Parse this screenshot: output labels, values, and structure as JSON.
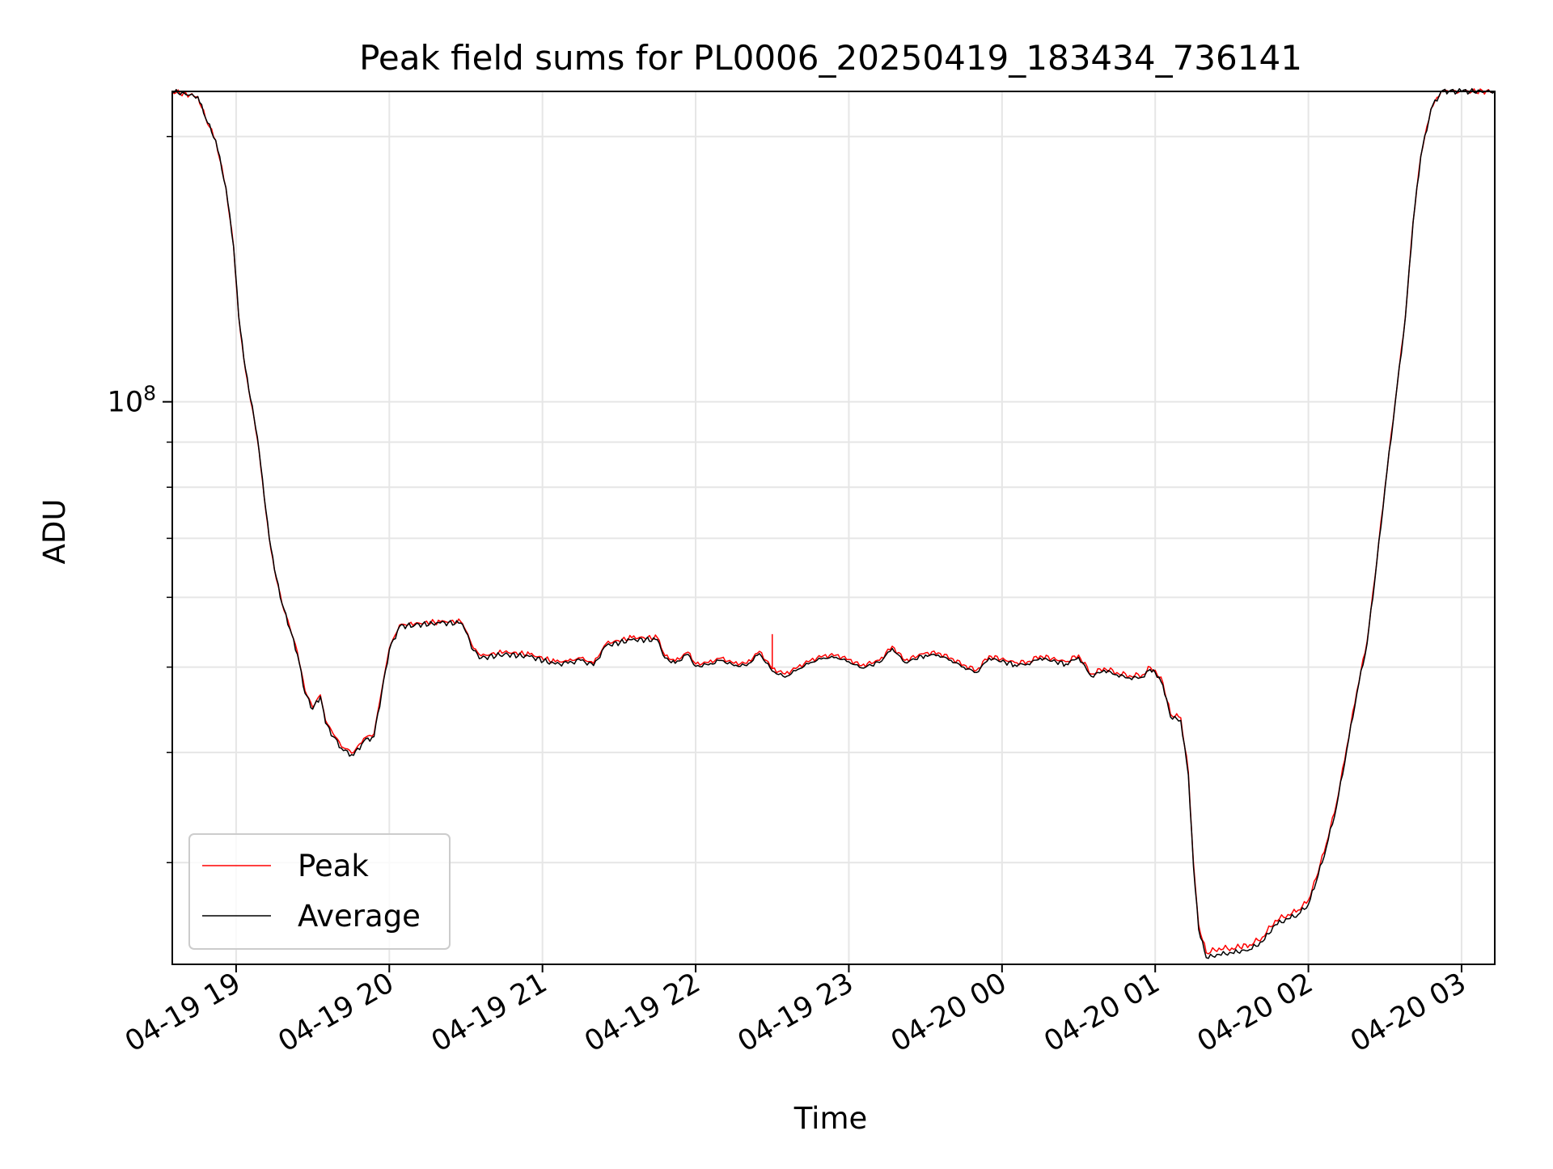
{
  "chart_data": {
    "type": "line",
    "title": "Peak field sums for PL0006_20250419_183434_736141",
    "xlabel": "Time",
    "ylabel": "ADU",
    "yscale": "log",
    "ylim": [
      23000000,
      225000000
    ],
    "y_tick_label": {
      "base": "10",
      "exponent": "8",
      "value": 100000000
    },
    "y_minor_ticks": [
      30000000,
      40000000,
      50000000,
      60000000,
      70000000,
      80000000,
      90000000,
      200000000
    ],
    "xlim": [
      "2025-04-19 18:35",
      "2025-04-20 03:13"
    ],
    "x_ticks": [
      {
        "t": "2025-04-19 19:00",
        "label": "04-19 19"
      },
      {
        "t": "2025-04-19 20:00",
        "label": "04-19 20"
      },
      {
        "t": "2025-04-19 21:00",
        "label": "04-19 21"
      },
      {
        "t": "2025-04-19 22:00",
        "label": "04-19 22"
      },
      {
        "t": "2025-04-19 23:00",
        "label": "04-19 23"
      },
      {
        "t": "2025-04-20 00:00",
        "label": "04-20 00"
      },
      {
        "t": "2025-04-20 01:00",
        "label": "04-20 01"
      },
      {
        "t": "2025-04-20 02:00",
        "label": "04-20 02"
      },
      {
        "t": "2025-04-20 03:00",
        "label": "04-20 03"
      }
    ],
    "grid": true,
    "legend": "lower-left",
    "series": [
      {
        "name": "Peak",
        "color": "#ff0000",
        "spike": {
          "t": "2025-04-19 22:30",
          "value": 54500000
        },
        "points": [
          [
            "2025-04-19 18:35",
            225000000
          ],
          [
            "2025-04-19 18:45",
            222000000
          ],
          [
            "2025-04-19 18:48",
            210000000
          ],
          [
            "2025-04-19 18:52",
            198000000
          ],
          [
            "2025-04-19 18:56",
            175000000
          ],
          [
            "2025-04-19 18:59",
            150000000
          ],
          [
            "2025-04-19 19:01",
            125000000
          ],
          [
            "2025-04-19 19:03",
            112000000
          ],
          [
            "2025-04-19 19:05",
            103000000
          ],
          [
            "2025-04-19 19:07",
            96000000
          ],
          [
            "2025-04-19 19:09",
            88000000
          ],
          [
            "2025-04-19 19:11",
            78000000
          ],
          [
            "2025-04-19 19:13",
            70000000
          ],
          [
            "2025-04-19 19:15",
            64500000
          ],
          [
            "2025-04-19 19:18",
            59000000
          ],
          [
            "2025-04-19 19:21",
            55500000
          ],
          [
            "2025-04-19 19:24",
            52000000
          ],
          [
            "2025-04-19 19:27",
            47000000
          ],
          [
            "2025-04-19 19:30",
            45000000
          ],
          [
            "2025-04-19 19:33",
            46500000
          ],
          [
            "2025-04-19 19:35",
            43500000
          ],
          [
            "2025-04-19 19:38",
            42000000
          ],
          [
            "2025-04-19 19:42",
            40500000
          ],
          [
            "2025-04-19 19:46",
            40000000
          ],
          [
            "2025-04-19 19:50",
            41500000
          ],
          [
            "2025-04-19 19:54",
            42000000
          ],
          [
            "2025-04-19 19:57",
            47000000
          ],
          [
            "2025-04-19 20:00",
            52500000
          ],
          [
            "2025-04-19 20:04",
            55800000
          ],
          [
            "2025-04-19 20:10",
            56000000
          ],
          [
            "2025-04-19 20:20",
            56300000
          ],
          [
            "2025-04-19 20:28",
            56300000
          ],
          [
            "2025-04-19 20:30",
            55000000
          ],
          [
            "2025-04-19 20:33",
            52500000
          ],
          [
            "2025-04-19 20:36",
            51500000
          ],
          [
            "2025-04-19 20:45",
            52000000
          ],
          [
            "2025-04-19 20:55",
            51700000
          ],
          [
            "2025-04-19 21:05",
            50700000
          ],
          [
            "2025-04-19 21:10",
            50800000
          ],
          [
            "2025-04-19 21:15",
            51200000
          ],
          [
            "2025-04-19 21:20",
            50500000
          ],
          [
            "2025-04-19 21:25",
            53200000
          ],
          [
            "2025-04-19 21:35",
            54000000
          ],
          [
            "2025-04-19 21:45",
            54000000
          ],
          [
            "2025-04-19 21:48",
            51500000
          ],
          [
            "2025-04-19 21:52",
            50800000
          ],
          [
            "2025-04-19 21:57",
            52000000
          ],
          [
            "2025-04-19 22:00",
            50400000
          ],
          [
            "2025-04-19 22:05",
            50600000
          ],
          [
            "2025-04-19 22:10",
            51200000
          ],
          [
            "2025-04-19 22:15",
            50500000
          ],
          [
            "2025-04-19 22:20",
            50500000
          ],
          [
            "2025-04-19 22:25",
            52100000
          ],
          [
            "2025-04-19 22:30",
            49800000
          ],
          [
            "2025-04-19 22:35",
            49100000
          ],
          [
            "2025-04-19 22:40",
            50000000
          ],
          [
            "2025-04-19 22:45",
            50900000
          ],
          [
            "2025-04-19 22:50",
            51500000
          ],
          [
            "2025-04-19 22:55",
            51600000
          ],
          [
            "2025-04-19 23:00",
            51000000
          ],
          [
            "2025-04-19 23:05",
            50200000
          ],
          [
            "2025-04-19 23:12",
            50900000
          ],
          [
            "2025-04-19 23:17",
            52800000
          ],
          [
            "2025-04-19 23:22",
            50900000
          ],
          [
            "2025-04-19 23:30",
            51900000
          ],
          [
            "2025-04-19 23:35",
            51900000
          ],
          [
            "2025-04-19 23:40",
            51200000
          ],
          [
            "2025-04-19 23:45",
            50300000
          ],
          [
            "2025-04-19 23:50",
            49600000
          ],
          [
            "2025-04-19 23:55",
            51500000
          ],
          [
            "2025-04-20 00:05",
            50600000
          ],
          [
            "2025-04-20 00:10",
            50700000
          ],
          [
            "2025-04-20 00:15",
            51500000
          ],
          [
            "2025-04-20 00:25",
            50700000
          ],
          [
            "2025-04-20 00:30",
            51600000
          ],
          [
            "2025-04-20 00:35",
            49100000
          ],
          [
            "2025-04-20 00:40",
            49900000
          ],
          [
            "2025-04-20 00:45",
            49300000
          ],
          [
            "2025-04-20 00:50",
            48900000
          ],
          [
            "2025-04-20 00:55",
            49000000
          ],
          [
            "2025-04-20 00:58",
            50000000
          ],
          [
            "2025-04-20 01:00",
            49600000
          ],
          [
            "2025-04-20 01:03",
            48000000
          ],
          [
            "2025-04-20 01:06",
            44200000
          ],
          [
            "2025-04-20 01:10",
            43800000
          ],
          [
            "2025-04-20 01:13",
            38000000
          ],
          [
            "2025-04-20 01:15",
            30000000
          ],
          [
            "2025-04-20 01:17",
            25500000
          ],
          [
            "2025-04-20 01:20",
            23700000
          ],
          [
            "2025-04-20 01:25",
            24000000
          ],
          [
            "2025-04-20 01:30",
            24000000
          ],
          [
            "2025-04-20 01:37",
            24200000
          ],
          [
            "2025-04-20 01:42",
            24700000
          ],
          [
            "2025-04-20 01:47",
            25800000
          ],
          [
            "2025-04-20 01:52",
            26200000
          ],
          [
            "2025-04-20 01:56",
            26500000
          ],
          [
            "2025-04-20 02:00",
            27200000
          ],
          [
            "2025-04-20 02:03",
            28800000
          ],
          [
            "2025-04-20 02:07",
            31500000
          ],
          [
            "2025-04-20 02:11",
            35000000
          ],
          [
            "2025-04-20 02:15",
            40500000
          ],
          [
            "2025-04-20 02:19",
            47000000
          ],
          [
            "2025-04-20 02:23",
            53500000
          ],
          [
            "2025-04-20 02:26",
            63000000
          ],
          [
            "2025-04-20 02:30",
            80000000
          ],
          [
            "2025-04-20 02:34",
            100000000
          ],
          [
            "2025-04-20 02:38",
            125000000
          ],
          [
            "2025-04-20 02:41",
            160000000
          ],
          [
            "2025-04-20 02:44",
            190000000
          ],
          [
            "2025-04-20 02:48",
            215000000
          ],
          [
            "2025-04-20 02:52",
            225000000
          ],
          [
            "2025-04-20 02:55",
            225000000
          ],
          [
            "2025-04-20 03:00",
            225000000
          ],
          [
            "2025-04-20 03:13",
            225000000
          ]
        ]
      },
      {
        "name": "Average",
        "color": "#000000",
        "points": [
          [
            "2025-04-19 18:35",
            225000000
          ],
          [
            "2025-04-19 18:45",
            222000000
          ],
          [
            "2025-04-19 18:48",
            210000000
          ],
          [
            "2025-04-19 18:52",
            198000000
          ],
          [
            "2025-04-19 18:56",
            175000000
          ],
          [
            "2025-04-19 18:59",
            150000000
          ],
          [
            "2025-04-19 19:01",
            125000000
          ],
          [
            "2025-04-19 19:03",
            112000000
          ],
          [
            "2025-04-19 19:05",
            103000000
          ],
          [
            "2025-04-19 19:07",
            96000000
          ],
          [
            "2025-04-19 19:09",
            88000000
          ],
          [
            "2025-04-19 19:11",
            78000000
          ],
          [
            "2025-04-19 19:13",
            70000000
          ],
          [
            "2025-04-19 19:15",
            64500000
          ],
          [
            "2025-04-19 19:18",
            59000000
          ],
          [
            "2025-04-19 19:21",
            55300000
          ],
          [
            "2025-04-19 19:24",
            51700000
          ],
          [
            "2025-04-19 19:27",
            46700000
          ],
          [
            "2025-04-19 19:30",
            44800000
          ],
          [
            "2025-04-19 19:33",
            46300000
          ],
          [
            "2025-04-19 19:35",
            43200000
          ],
          [
            "2025-04-19 19:38",
            41700000
          ],
          [
            "2025-04-19 19:42",
            40200000
          ],
          [
            "2025-04-19 19:46",
            39700000
          ],
          [
            "2025-04-19 19:50",
            41200000
          ],
          [
            "2025-04-19 19:54",
            41700000
          ],
          [
            "2025-04-19 19:57",
            46700000
          ],
          [
            "2025-04-19 20:00",
            52300000
          ],
          [
            "2025-04-19 20:04",
            55600000
          ],
          [
            "2025-04-19 20:10",
            55800000
          ],
          [
            "2025-04-19 20:20",
            56100000
          ],
          [
            "2025-04-19 20:28",
            56100000
          ],
          [
            "2025-04-19 20:30",
            54800000
          ],
          [
            "2025-04-19 20:33",
            52200000
          ],
          [
            "2025-04-19 20:36",
            51200000
          ],
          [
            "2025-04-19 20:45",
            51700000
          ],
          [
            "2025-04-19 20:55",
            51400000
          ],
          [
            "2025-04-19 21:05",
            50400000
          ],
          [
            "2025-04-19 21:10",
            50500000
          ],
          [
            "2025-04-19 21:15",
            50900000
          ],
          [
            "2025-04-19 21:20",
            50200000
          ],
          [
            "2025-04-19 21:25",
            52900000
          ],
          [
            "2025-04-19 21:35",
            53700000
          ],
          [
            "2025-04-19 21:45",
            53700000
          ],
          [
            "2025-04-19 21:48",
            51200000
          ],
          [
            "2025-04-19 21:52",
            50500000
          ],
          [
            "2025-04-19 21:57",
            51700000
          ],
          [
            "2025-04-19 22:00",
            50100000
          ],
          [
            "2025-04-19 22:05",
            50300000
          ],
          [
            "2025-04-19 22:10",
            50900000
          ],
          [
            "2025-04-19 22:15",
            50200000
          ],
          [
            "2025-04-19 22:20",
            50200000
          ],
          [
            "2025-04-19 22:25",
            51800000
          ],
          [
            "2025-04-19 22:30",
            49500000
          ],
          [
            "2025-04-19 22:35",
            48700000
          ],
          [
            "2025-04-19 22:40",
            49700000
          ],
          [
            "2025-04-19 22:45",
            50600000
          ],
          [
            "2025-04-19 22:50",
            51200000
          ],
          [
            "2025-04-19 22:55",
            51300000
          ],
          [
            "2025-04-19 23:00",
            50700000
          ],
          [
            "2025-04-19 23:05",
            49900000
          ],
          [
            "2025-04-19 23:12",
            50600000
          ],
          [
            "2025-04-19 23:17",
            52500000
          ],
          [
            "2025-04-19 23:22",
            50600000
          ],
          [
            "2025-04-19 23:30",
            51600000
          ],
          [
            "2025-04-19 23:35",
            51600000
          ],
          [
            "2025-04-19 23:40",
            50900000
          ],
          [
            "2025-04-19 23:45",
            50000000
          ],
          [
            "2025-04-19 23:50",
            49300000
          ],
          [
            "2025-04-19 23:55",
            51200000
          ],
          [
            "2025-04-20 00:05",
            50300000
          ],
          [
            "2025-04-20 00:10",
            50400000
          ],
          [
            "2025-04-20 00:15",
            51200000
          ],
          [
            "2025-04-20 00:25",
            50400000
          ],
          [
            "2025-04-20 00:30",
            51300000
          ],
          [
            "2025-04-20 00:35",
            48800000
          ],
          [
            "2025-04-20 00:40",
            49600000
          ],
          [
            "2025-04-20 00:45",
            49000000
          ],
          [
            "2025-04-20 00:50",
            48600000
          ],
          [
            "2025-04-20 00:55",
            48700000
          ],
          [
            "2025-04-20 00:58",
            49700000
          ],
          [
            "2025-04-20 01:00",
            49300000
          ],
          [
            "2025-04-20 01:03",
            47700000
          ],
          [
            "2025-04-20 01:06",
            43900000
          ],
          [
            "2025-04-20 01:10",
            43500000
          ],
          [
            "2025-04-20 01:13",
            37700000
          ],
          [
            "2025-04-20 01:15",
            29700000
          ],
          [
            "2025-04-20 01:17",
            25200000
          ],
          [
            "2025-04-20 01:20",
            23400000
          ],
          [
            "2025-04-20 01:25",
            23600000
          ],
          [
            "2025-04-20 01:30",
            23700000
          ],
          [
            "2025-04-20 01:37",
            23900000
          ],
          [
            "2025-04-20 01:42",
            24400000
          ],
          [
            "2025-04-20 01:47",
            25500000
          ],
          [
            "2025-04-20 01:52",
            25900000
          ],
          [
            "2025-04-20 01:56",
            26200000
          ],
          [
            "2025-04-20 02:00",
            26900000
          ],
          [
            "2025-04-20 02:03",
            28500000
          ],
          [
            "2025-04-20 02:07",
            31200000
          ],
          [
            "2025-04-20 02:11",
            34700000
          ],
          [
            "2025-04-20 02:15",
            40200000
          ],
          [
            "2025-04-20 02:19",
            46700000
          ],
          [
            "2025-04-20 02:23",
            53200000
          ],
          [
            "2025-04-20 02:26",
            62700000
          ],
          [
            "2025-04-20 02:30",
            79700000
          ],
          [
            "2025-04-20 02:34",
            99700000
          ],
          [
            "2025-04-20 02:38",
            124700000
          ],
          [
            "2025-04-20 02:41",
            159700000
          ],
          [
            "2025-04-20 02:44",
            189700000
          ],
          [
            "2025-04-20 02:48",
            214700000
          ],
          [
            "2025-04-20 02:52",
            225000000
          ],
          [
            "2025-04-20 02:55",
            225000000
          ],
          [
            "2025-04-20 03:00",
            225000000
          ],
          [
            "2025-04-20 03:13",
            225000000
          ]
        ]
      }
    ]
  }
}
